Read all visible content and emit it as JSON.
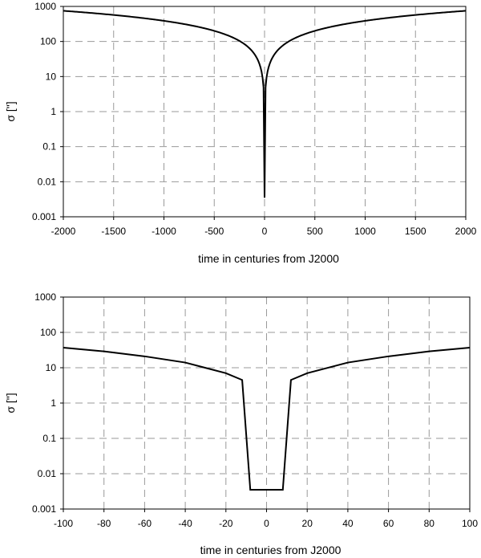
{
  "chart_data": [
    {
      "type": "line",
      "scale": "log-y",
      "xlabel": "time in centuries from J2000",
      "ylabel": "σ [\"]",
      "xlim": [
        -2000,
        2000
      ],
      "ylim": [
        0.001,
        1000
      ],
      "xticks": [
        "-2000",
        "-1500",
        "-1000",
        "-500",
        "0",
        "500",
        "1000",
        "1500",
        "2000"
      ],
      "yticks": [
        "0.001",
        "0.01",
        "0.1",
        "1",
        "10",
        "100",
        "1000"
      ],
      "grid": true,
      "line_color": "#000000",
      "series": [
        {
          "x": [
            -2000,
            -1500,
            -1000,
            -500,
            -200,
            -100,
            -50,
            -20,
            -10,
            0,
            10,
            20,
            50,
            100,
            200,
            500,
            1000,
            1500,
            2000
          ],
          "y": [
            750,
            530,
            340,
            170,
            68,
            33,
            17,
            6.5,
            4,
            0.0035,
            4,
            6.5,
            17,
            33,
            68,
            170,
            340,
            530,
            750
          ]
        }
      ]
    },
    {
      "type": "line",
      "scale": "log-y",
      "xlabel": "time in centuries from J2000",
      "ylabel": "σ [\"]",
      "xlim": [
        -100,
        100
      ],
      "ylim": [
        0.001,
        1000
      ],
      "xticks": [
        "-100",
        "-80",
        "-60",
        "-40",
        "-20",
        "0",
        "20",
        "40",
        "60",
        "80",
        "100"
      ],
      "yticks": [
        "0.001",
        "0.01",
        "0.1",
        "1",
        "10",
        "100",
        "1000"
      ],
      "grid": true,
      "line_color": "#000000",
      "series": [
        {
          "x": [
            -100,
            -80,
            -60,
            -40,
            -20,
            -12,
            -8,
            0,
            8,
            12,
            20,
            40,
            60,
            80,
            100
          ],
          "y": [
            37,
            29,
            21,
            14,
            7,
            4.5,
            0.0035,
            0.0035,
            0.0035,
            4.5,
            7,
            14,
            21,
            29,
            37
          ]
        }
      ]
    }
  ]
}
